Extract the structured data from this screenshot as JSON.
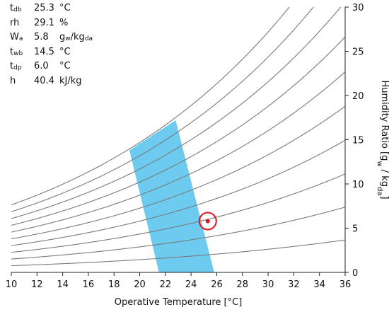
{
  "readout": [
    {
      "sym": "t",
      "sub": "db",
      "value": "25.3",
      "unit": "°C"
    },
    {
      "sym": "rh",
      "sub": "",
      "value": "29.1",
      "unit": "%"
    },
    {
      "sym": "W",
      "sub": "a",
      "value": "5.8",
      "unit": "g",
      "unit_sub1": "w",
      "unit_mid": "/kg",
      "unit_sub2": "da"
    },
    {
      "sym": "t",
      "sub": "wb",
      "value": "14.5",
      "unit": "°C"
    },
    {
      "sym": "t",
      "sub": "dp",
      "value": "6.0",
      "unit": "°C"
    },
    {
      "sym": "h",
      "sub": "",
      "value": "40.4",
      "unit": "kJ/kg"
    }
  ],
  "chart_data": {
    "type": "line",
    "xlabel": "Operative Temperature [°C]",
    "ylabel_parts": [
      "Humidity Ratio [g",
      "w",
      " / kg",
      "da",
      "]"
    ],
    "xlim": [
      10,
      36
    ],
    "ylim": [
      0,
      30
    ],
    "x_ticks": [
      10,
      12,
      14,
      16,
      18,
      20,
      22,
      24,
      26,
      28,
      30,
      32,
      34,
      36
    ],
    "y_ticks": [
      0,
      5,
      10,
      15,
      20,
      25,
      30
    ],
    "rh_curves_percent": [
      10,
      20,
      30,
      40,
      50,
      60,
      70,
      80,
      90,
      100
    ],
    "comfort_zone": {
      "polygon": [
        [
          21.5,
          0
        ],
        [
          25.8,
          0
        ],
        [
          22.8,
          17.2
        ],
        [
          19.2,
          13.8
        ]
      ],
      "color": "#6dcbef"
    },
    "point": {
      "x": 25.3,
      "y": 5.8,
      "color": "#e0141c"
    },
    "curve_color": "#7a7a7a",
    "grid": false,
    "legend": "none"
  }
}
